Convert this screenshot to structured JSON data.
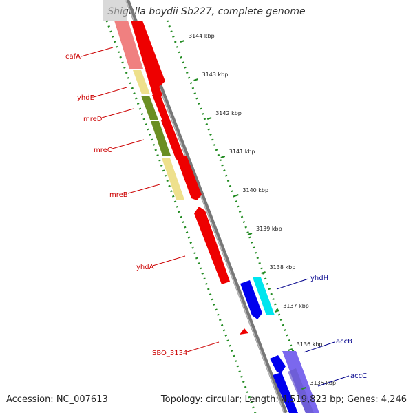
{
  "title": "Shigella boydii Sb227, complete genome",
  "footer": {
    "accession": "Accession: NC_007613",
    "summary": "Topology: circular; Length: 4,519,823 bp; Genes: 4,246"
  },
  "colors": {
    "reverse_strand_label": "#cc0000",
    "forward_strand_label": "#00008b",
    "ruler_dots": "#228b22",
    "backbone": "#777777"
  },
  "ticks": [
    "3144 kbp",
    "3143 kbp",
    "3142 kbp",
    "3141 kbp",
    "3140 kbp",
    "3139 kbp",
    "3138 kbp",
    "3137 kbp",
    "3136 kbp",
    "3135 kbp"
  ],
  "genes": [
    {
      "name": "cafA",
      "strand": "reverse"
    },
    {
      "name": "yhdE",
      "strand": "reverse"
    },
    {
      "name": "mreD",
      "strand": "reverse"
    },
    {
      "name": "mreC",
      "strand": "reverse"
    },
    {
      "name": "mreB",
      "strand": "reverse"
    },
    {
      "name": "yhdA",
      "strand": "reverse"
    },
    {
      "name": "SBO_3134",
      "strand": "reverse"
    },
    {
      "name": "yhdH",
      "strand": "forward"
    },
    {
      "name": "accB",
      "strand": "forward"
    },
    {
      "name": "accC",
      "strand": "forward"
    }
  ]
}
